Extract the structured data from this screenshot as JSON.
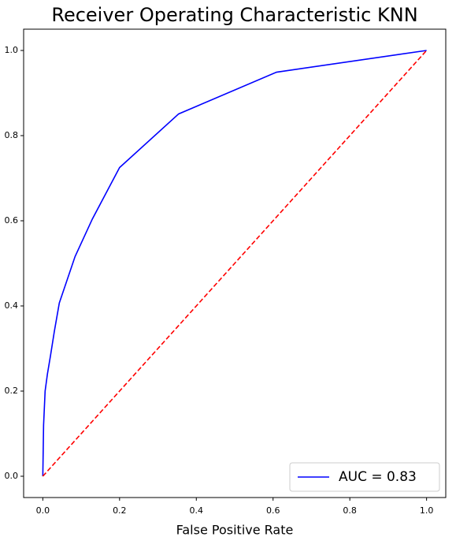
{
  "chart_data": {
    "type": "line",
    "title": "Receiver Operating Characteristic KNN",
    "xlabel": "False Positive Rate",
    "series": [
      {
        "name": "AUC = 0.83",
        "color": "#0000ff",
        "linestyle": "solid",
        "x": [
          0,
          0.002,
          0.006,
          0.012,
          0.02,
          0.03,
          0.043,
          0.084,
          0.129,
          0.2,
          0.354,
          0.609,
          1
        ],
        "values": [
          0,
          0.12,
          0.2,
          0.24,
          0.283,
          0.34,
          0.407,
          0.516,
          0.604,
          0.725,
          0.851,
          0.949,
          1
        ]
      },
      {
        "color": "#ff0000",
        "linestyle": "dashed",
        "x": [
          0,
          1
        ],
        "values": [
          0,
          1
        ]
      }
    ],
    "xlim": [
      -0.05,
      1.05
    ],
    "ylim": [
      -0.05,
      1.05
    ],
    "xticks": [
      {
        "value": 0,
        "label": "0.0"
      },
      0.2,
      0.4,
      0.6,
      0.8,
      {
        "value": 1,
        "label": "1.0"
      }
    ],
    "yticks": [
      {
        "value": 0,
        "label": "0.0"
      },
      0.2,
      0.4,
      0.6,
      0.8,
      {
        "value": 1,
        "label": "1.0"
      }
    ],
    "legend": "lower right"
  }
}
